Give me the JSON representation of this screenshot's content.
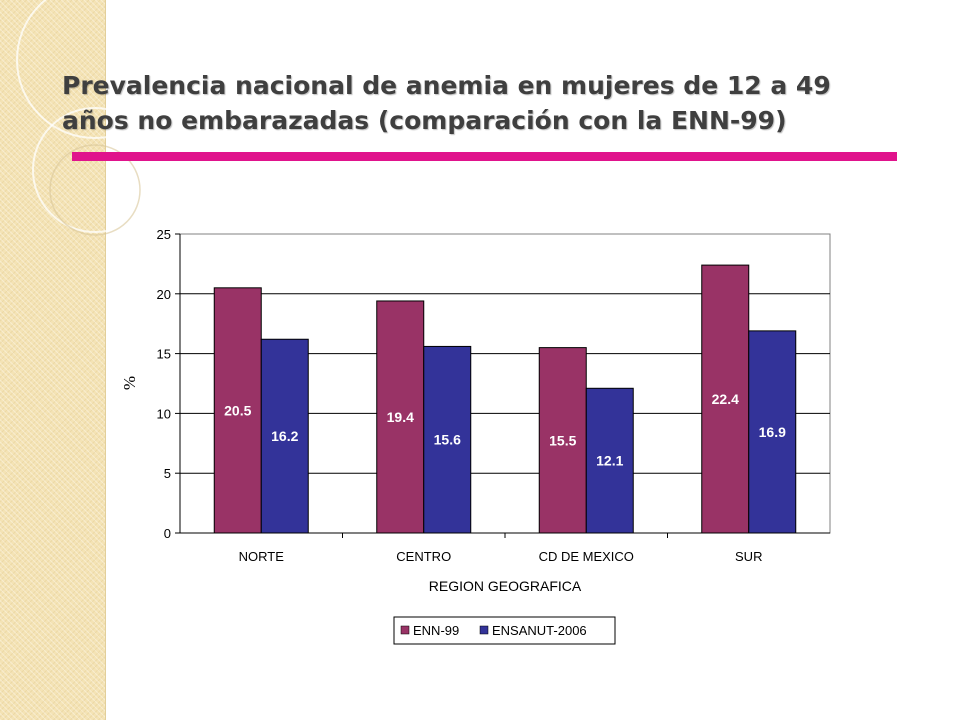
{
  "slide": {
    "title": "Prevalencia nacional de anemia en mujeres de 12 a 49 años no embarazadas (comparación con la ENN-99)",
    "accent_color": "#e0138c",
    "sidebar_color": "#f4e3b5"
  },
  "chart_data": {
    "type": "bar",
    "title": "",
    "xlabel": "REGION GEOGRAFICA",
    "ylabel": "%",
    "categories": [
      "NORTE",
      "CENTRO",
      "CD DE MEXICO",
      "SUR"
    ],
    "series": [
      {
        "name": "ENN-99",
        "color": "#993366",
        "values": [
          20.5,
          19.4,
          15.5,
          22.4
        ],
        "labels": [
          "20.5",
          "19.4",
          "15.5",
          "22.4"
        ]
      },
      {
        "name": "ENSANUT-2006",
        "color": "#333399",
        "values": [
          16.2,
          15.6,
          12.1,
          16.9
        ],
        "labels": [
          "16.2",
          "15.6",
          "12.1",
          "16.9"
        ]
      }
    ],
    "ylim": [
      0,
      25
    ],
    "yticks": [
      "0",
      "5",
      "10",
      "15",
      "20",
      "25"
    ],
    "grid": true,
    "legend": "bottom"
  }
}
